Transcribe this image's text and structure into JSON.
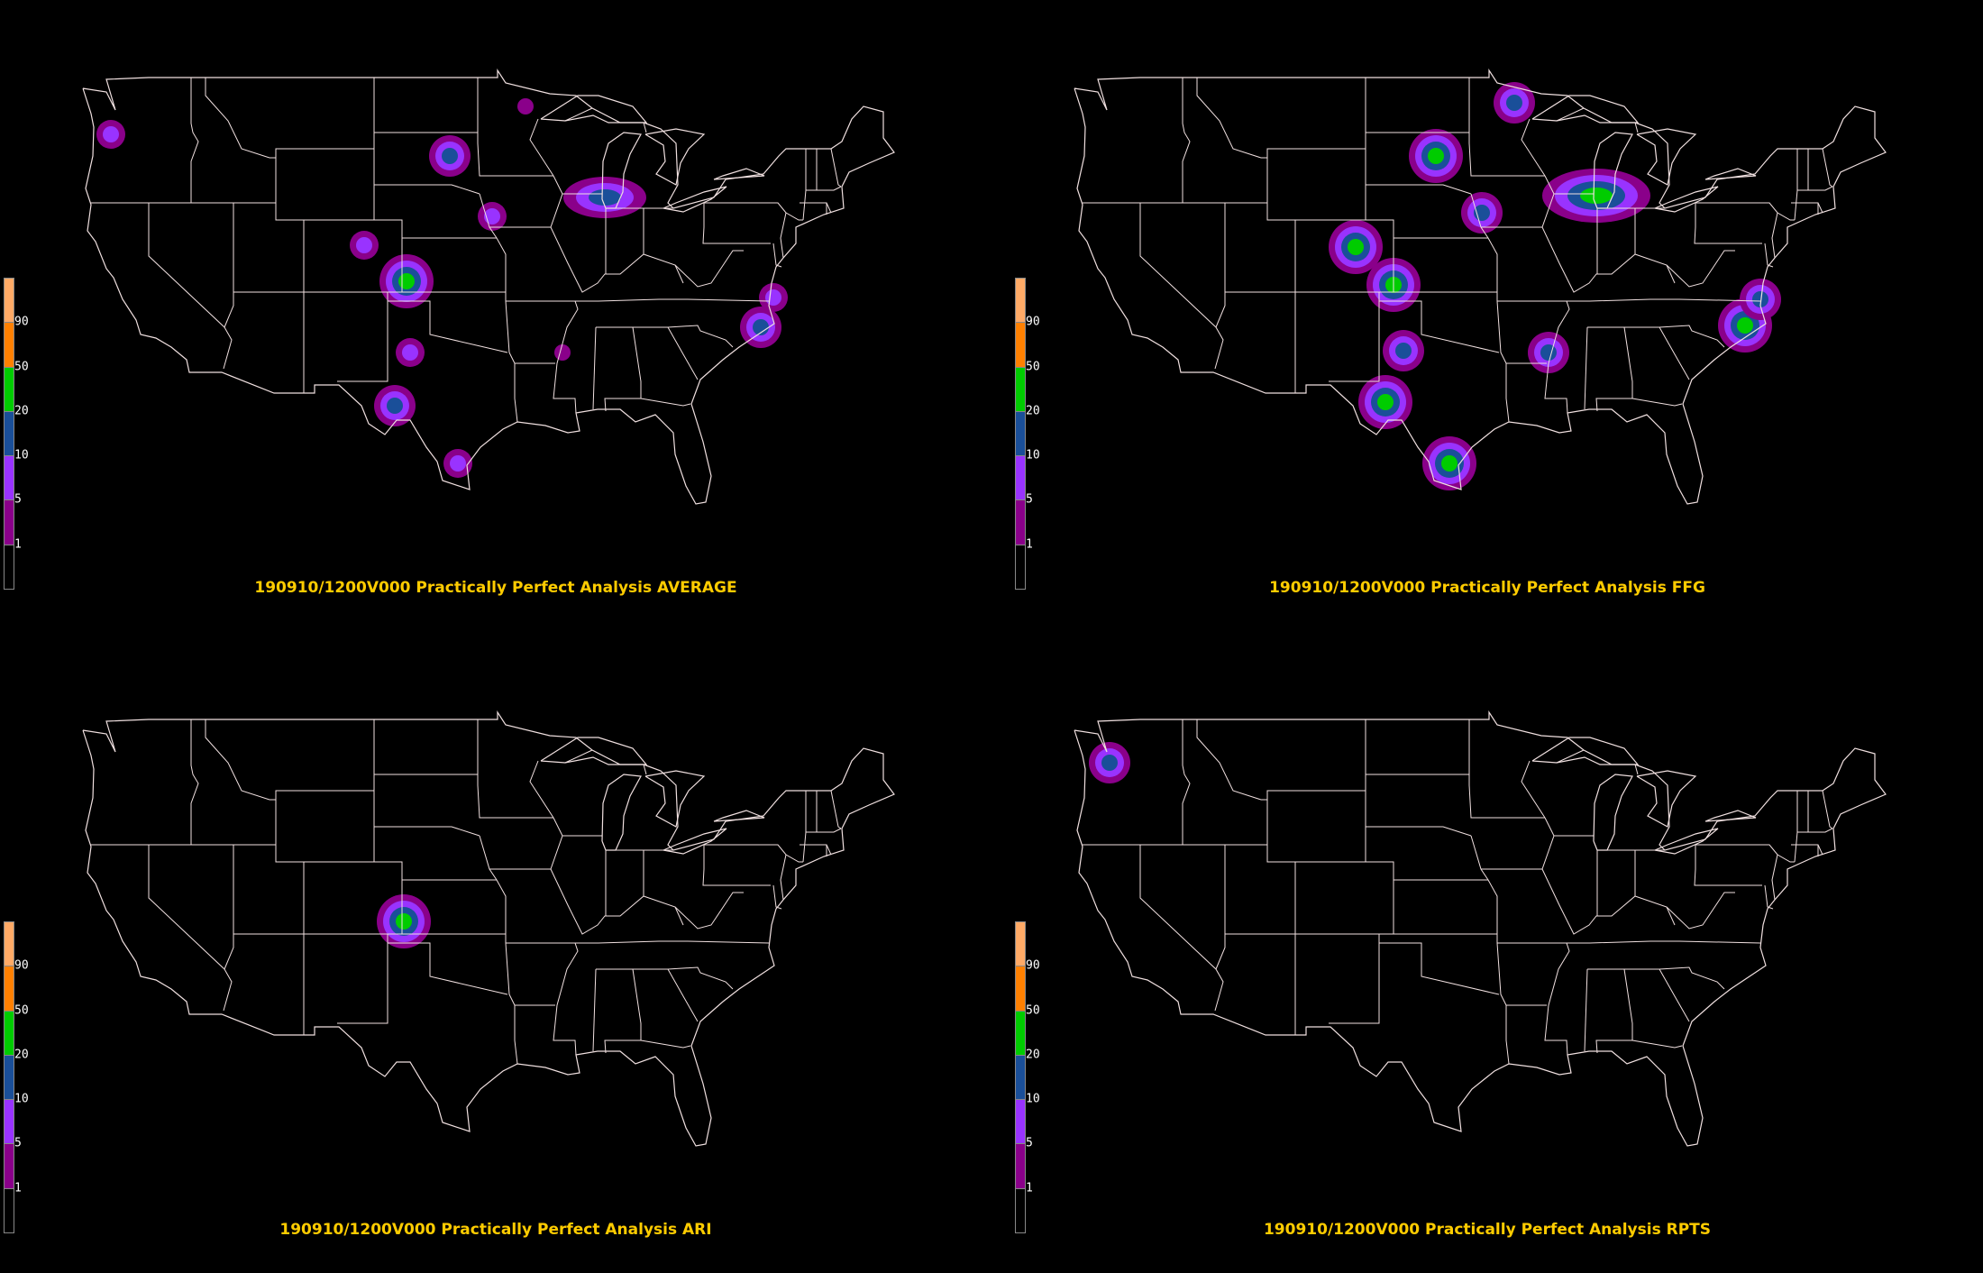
{
  "colors": {
    "background": "#000000",
    "map_lines": "#f0e0e0",
    "title": "#ffcc00",
    "bins": [
      "#000000",
      "#8a008a",
      "#9933ff",
      "#1a4f99",
      "#00cc00",
      "#ff8000",
      "#ffaa66"
    ]
  },
  "legend": {
    "labels": [
      "1",
      "5",
      "10",
      "20",
      "50",
      "90"
    ]
  },
  "panels": [
    {
      "id": "average",
      "title": "190910/1200V000 Practically Perfect Analysis AVERAGE",
      "blobs": [
        {
          "lon": -122.7,
          "lat": 45.8,
          "levels": 2
        },
        {
          "lon": -98.6,
          "lat": 44.6,
          "levels": 3
        },
        {
          "lon": -93.2,
          "lat": 47.4,
          "levels": 1
        },
        {
          "lon": -87.6,
          "lat": 42.3,
          "levels": 3,
          "stretch": 2.0
        },
        {
          "lon": -95.6,
          "lat": 41.2,
          "levels": 2
        },
        {
          "lon": -104.7,
          "lat": 39.6,
          "levels": 2
        },
        {
          "lon": -101.7,
          "lat": 37.6,
          "levels": 4
        },
        {
          "lon": -101.4,
          "lat": 33.6,
          "levels": 2
        },
        {
          "lon": -102.5,
          "lat": 30.6,
          "levels": 3
        },
        {
          "lon": -98.0,
          "lat": 27.4,
          "levels": 2
        },
        {
          "lon": -90.6,
          "lat": 33.6,
          "levels": 1
        },
        {
          "lon": -76.5,
          "lat": 35.0,
          "levels": 3
        },
        {
          "lon": -75.6,
          "lat": 36.7,
          "levels": 2
        }
      ]
    },
    {
      "id": "ffg",
      "title": "190910/1200V000 Practically Perfect Analysis FFG",
      "blobs": [
        {
          "lon": -93.4,
          "lat": 47.6,
          "levels": 3
        },
        {
          "lon": -99.0,
          "lat": 44.6,
          "levels": 4
        },
        {
          "lon": -87.6,
          "lat": 42.4,
          "levels": 4,
          "stretch": 2.0
        },
        {
          "lon": -95.7,
          "lat": 41.4,
          "levels": 3
        },
        {
          "lon": -104.7,
          "lat": 39.5,
          "levels": 4
        },
        {
          "lon": -102.0,
          "lat": 37.4,
          "levels": 4
        },
        {
          "lon": -101.3,
          "lat": 33.7,
          "levels": 3
        },
        {
          "lon": -102.6,
          "lat": 30.8,
          "levels": 4
        },
        {
          "lon": -91.0,
          "lat": 33.6,
          "levels": 3
        },
        {
          "lon": -98.0,
          "lat": 27.4,
          "levels": 4
        },
        {
          "lon": -77.0,
          "lat": 35.1,
          "levels": 4
        },
        {
          "lon": -75.9,
          "lat": 36.6,
          "levels": 3
        }
      ]
    },
    {
      "id": "ari",
      "title": "190910/1200V000 Practically Perfect Analysis ARI",
      "blobs": [
        {
          "lon": -101.9,
          "lat": 37.7,
          "levels": 4
        }
      ]
    },
    {
      "id": "rpts",
      "title": "190910/1200V000 Practically Perfect Analysis RPTS",
      "blobs": [
        {
          "lon": -122.2,
          "lat": 46.6,
          "levels": 3
        }
      ]
    }
  ]
}
